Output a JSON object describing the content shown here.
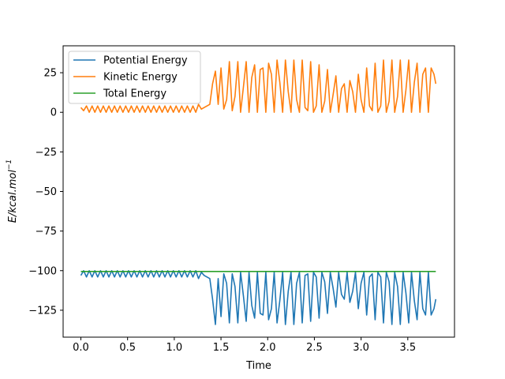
{
  "chart_data": {
    "type": "line",
    "xlabel": "Time",
    "ylabel": "E/kcal.mol",
    "ylabel_sup": "−1",
    "xlim": [
      -0.19,
      4.0
    ],
    "ylim": [
      -142,
      42
    ],
    "xticks": [
      0.0,
      0.5,
      1.0,
      1.5,
      2.0,
      2.5,
      3.0,
      3.5
    ],
    "xtick_labels": [
      "0.0",
      "0.5",
      "1.0",
      "1.5",
      "2.0",
      "2.5",
      "3.0",
      "3.5"
    ],
    "yticks": [
      25,
      0,
      -25,
      -50,
      -75,
      -100,
      -125
    ],
    "ytick_labels": [
      "25",
      "0",
      "−25",
      "−50",
      "−75",
      "−100",
      "−125"
    ],
    "grid": false,
    "legend_position": "upper-left",
    "series": [
      {
        "name": "Potential Energy",
        "color": "#1f77b4",
        "x": [
          0.0,
          0.03,
          0.06,
          0.09,
          0.12,
          0.15,
          0.18,
          0.21,
          0.24,
          0.27,
          0.3,
          0.33,
          0.36,
          0.39,
          0.42,
          0.45,
          0.48,
          0.51,
          0.54,
          0.57,
          0.6,
          0.63,
          0.66,
          0.69,
          0.72,
          0.75,
          0.78,
          0.81,
          0.84,
          0.87,
          0.9,
          0.93,
          0.96,
          0.99,
          1.02,
          1.05,
          1.08,
          1.11,
          1.14,
          1.17,
          1.2,
          1.23,
          1.26,
          1.29,
          1.32,
          1.35,
          1.38,
          1.41,
          1.44,
          1.47,
          1.5,
          1.53,
          1.56,
          1.59,
          1.62,
          1.65,
          1.68,
          1.71,
          1.74,
          1.77,
          1.8,
          1.83,
          1.86,
          1.89,
          1.92,
          1.95,
          1.98,
          2.01,
          2.04,
          2.07,
          2.1,
          2.13,
          2.16,
          2.19,
          2.22,
          2.25,
          2.28,
          2.31,
          2.34,
          2.37,
          2.4,
          2.43,
          2.46,
          2.49,
          2.52,
          2.55,
          2.58,
          2.61,
          2.64,
          2.67,
          2.7,
          2.73,
          2.76,
          2.79,
          2.82,
          2.85,
          2.88,
          2.91,
          2.94,
          2.97,
          3.0,
          3.03,
          3.06,
          3.09,
          3.12,
          3.15,
          3.18,
          3.21,
          3.24,
          3.27,
          3.3,
          3.33,
          3.36,
          3.39,
          3.42,
          3.45,
          3.48,
          3.51,
          3.54,
          3.57,
          3.6,
          3.63,
          3.66,
          3.69,
          3.72,
          3.75,
          3.78,
          3.8
        ],
        "y": [
          -103,
          -100,
          -104,
          -100,
          -104,
          -100,
          -104,
          -100,
          -104,
          -100,
          -104,
          -100,
          -104,
          -100,
          -104,
          -100,
          -104,
          -100,
          -104,
          -100,
          -104,
          -100,
          -104,
          -100,
          -104,
          -100,
          -104,
          -100,
          -104,
          -100,
          -104,
          -100,
          -104,
          -100,
          -104,
          -100,
          -104,
          -100,
          -104,
          -100,
          -104,
          -100,
          -105,
          -101,
          -103,
          -104,
          -105,
          -118,
          -134,
          -105,
          -129,
          -102,
          -108,
          -133,
          -102,
          -110,
          -133,
          -101,
          -116,
          -132,
          -101,
          -122,
          -130,
          -101,
          -127,
          -128,
          -101,
          -131,
          -124,
          -101,
          -133,
          -119,
          -101,
          -134,
          -113,
          -101,
          -134,
          -108,
          -101,
          -133,
          -103,
          -102,
          -132,
          -101,
          -104,
          -130,
          -101,
          -107,
          -127,
          -101,
          -111,
          -123,
          -101,
          -115,
          -118,
          -101,
          -120,
          -113,
          -101,
          -124,
          -108,
          -101,
          -128,
          -104,
          -102,
          -131,
          -101,
          -104,
          -133,
          -101,
          -107,
          -134,
          -101,
          -110,
          -134,
          -101,
          -114,
          -133,
          -101,
          -119,
          -131,
          -101,
          -124,
          -128,
          -101,
          -128,
          -124,
          -118
        ]
      },
      {
        "name": "Kinetic Energy",
        "color": "#ff7f0e",
        "x": [
          0.0,
          0.03,
          0.06,
          0.09,
          0.12,
          0.15,
          0.18,
          0.21,
          0.24,
          0.27,
          0.3,
          0.33,
          0.36,
          0.39,
          0.42,
          0.45,
          0.48,
          0.51,
          0.54,
          0.57,
          0.6,
          0.63,
          0.66,
          0.69,
          0.72,
          0.75,
          0.78,
          0.81,
          0.84,
          0.87,
          0.9,
          0.93,
          0.96,
          0.99,
          1.02,
          1.05,
          1.08,
          1.11,
          1.14,
          1.17,
          1.2,
          1.23,
          1.26,
          1.29,
          1.32,
          1.35,
          1.38,
          1.41,
          1.44,
          1.47,
          1.5,
          1.53,
          1.56,
          1.59,
          1.62,
          1.65,
          1.68,
          1.71,
          1.74,
          1.77,
          1.8,
          1.83,
          1.86,
          1.89,
          1.92,
          1.95,
          1.98,
          2.01,
          2.04,
          2.07,
          2.1,
          2.13,
          2.16,
          2.19,
          2.22,
          2.25,
          2.28,
          2.31,
          2.34,
          2.37,
          2.4,
          2.43,
          2.46,
          2.49,
          2.52,
          2.55,
          2.58,
          2.61,
          2.64,
          2.67,
          2.7,
          2.73,
          2.76,
          2.79,
          2.82,
          2.85,
          2.88,
          2.91,
          2.94,
          2.97,
          3.0,
          3.03,
          3.06,
          3.09,
          3.12,
          3.15,
          3.18,
          3.21,
          3.24,
          3.27,
          3.3,
          3.33,
          3.36,
          3.39,
          3.42,
          3.45,
          3.48,
          3.51,
          3.54,
          3.57,
          3.6,
          3.63,
          3.66,
          3.69,
          3.72,
          3.75,
          3.78,
          3.8
        ],
        "y": [
          3,
          1,
          4,
          0,
          4,
          0,
          4,
          0,
          4,
          0,
          4,
          0,
          4,
          0,
          4,
          0,
          4,
          0,
          4,
          0,
          4,
          0,
          4,
          0,
          4,
          0,
          4,
          0,
          4,
          0,
          4,
          0,
          4,
          0,
          4,
          0,
          4,
          0,
          4,
          0,
          4,
          0,
          5,
          2,
          3,
          4,
          5,
          18,
          26,
          5,
          28,
          2,
          8,
          32,
          1,
          10,
          32,
          0,
          16,
          32,
          0,
          22,
          30,
          0,
          27,
          28,
          0,
          31,
          24,
          0,
          33,
          19,
          0,
          33,
          13,
          0,
          33,
          8,
          0,
          33,
          3,
          1,
          32,
          0,
          4,
          30,
          0,
          7,
          27,
          0,
          11,
          23,
          0,
          15,
          18,
          0,
          20,
          13,
          0,
          24,
          8,
          0,
          28,
          4,
          1,
          31,
          0,
          4,
          33,
          0,
          7,
          33,
          0,
          10,
          33,
          0,
          14,
          33,
          0,
          19,
          31,
          0,
          24,
          28,
          0,
          28,
          24,
          18
        ]
      },
      {
        "name": "Total Energy",
        "color": "#2ca02c",
        "x": [
          0.0,
          3.8
        ],
        "y": [
          -100.5,
          -100.5
        ]
      }
    ]
  }
}
